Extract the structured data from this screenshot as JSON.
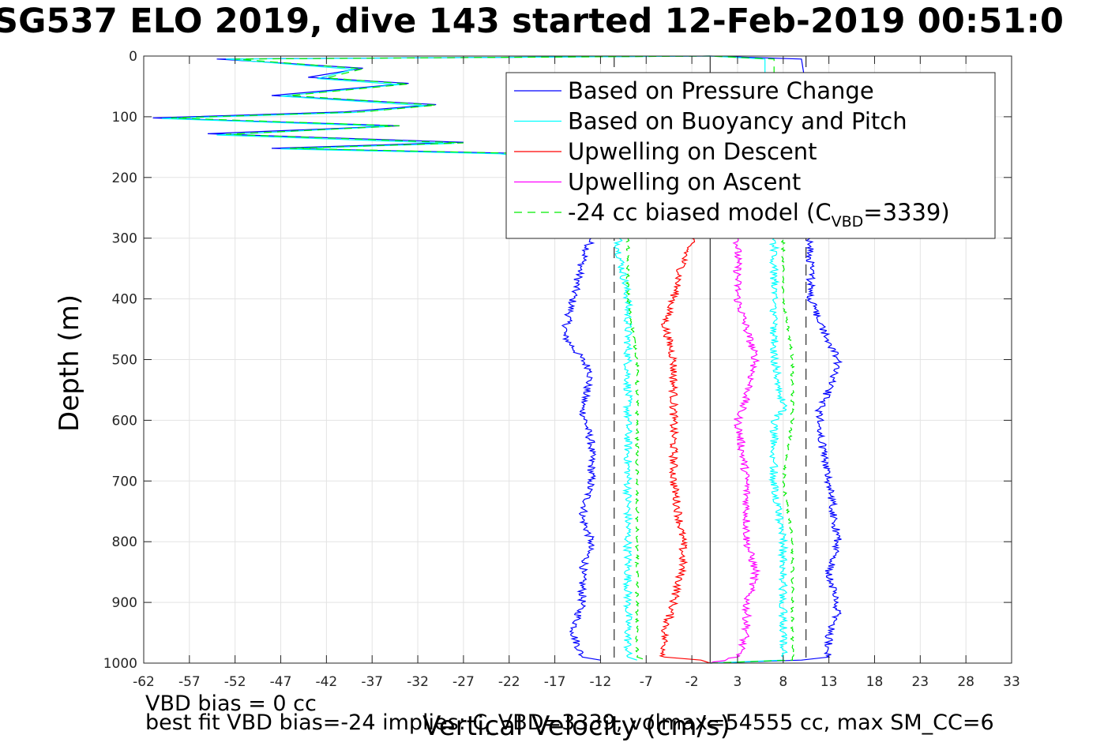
{
  "title": "SG537 ELO 2019, dive 143 started 12-Feb-2019 00:51:0",
  "footer": {
    "line1": "VBD bias = 0 cc",
    "line2": "best fit VBD bias=-24 implies: C_VBD=3339, volmax=54555 cc, max SM_CC=6"
  },
  "chart_data": {
    "type": "line",
    "xlabel": "Vertical Velocity (cm/s)",
    "ylabel": "Depth (m)",
    "xlim": [
      -62,
      33
    ],
    "ylim": [
      1000,
      0
    ],
    "xticks": [
      -62,
      -57,
      -52,
      -47,
      -42,
      -37,
      -32,
      -27,
      -22,
      -17,
      -12,
      -7,
      -2,
      3,
      8,
      13,
      18,
      23,
      28,
      33
    ],
    "yticks": [
      0,
      100,
      200,
      300,
      400,
      500,
      600,
      700,
      800,
      900,
      1000
    ],
    "grid": true,
    "legend_position": "top-right",
    "reference_lines": {
      "zero_solid_x": 0,
      "dashed_x": [
        -10.5,
        10.5
      ]
    },
    "series": [
      {
        "name": "Based on Pressure Change",
        "color": "#0000ff",
        "style": "solid",
        "descent": [
          [
            0,
            0
          ],
          [
            -54,
            5
          ],
          [
            -38,
            20
          ],
          [
            -44,
            35
          ],
          [
            -33,
            45
          ],
          [
            -48,
            65
          ],
          [
            -30,
            80
          ],
          [
            -40,
            92
          ],
          [
            -61,
            102
          ],
          [
            -34,
            115
          ],
          [
            -55,
            128
          ],
          [
            -27,
            142
          ],
          [
            -48,
            152
          ],
          [
            -22,
            160
          ],
          [
            -16,
            170
          ],
          [
            -12,
            180
          ],
          [
            -10,
            190
          ],
          [
            -13,
            300
          ],
          [
            -14,
            340
          ],
          [
            -15,
            400
          ],
          [
            -16,
            460
          ],
          [
            -13,
            520
          ],
          [
            -14,
            580
          ],
          [
            -13,
            640
          ],
          [
            -13,
            700
          ],
          [
            -14,
            760
          ],
          [
            -13,
            800
          ],
          [
            -14,
            850
          ],
          [
            -14,
            900
          ],
          [
            -15,
            950
          ],
          [
            -14,
            990
          ],
          [
            -12,
            995
          ]
        ],
        "ascent": [
          [
            0,
            1000
          ],
          [
            10,
            995
          ],
          [
            13,
            990
          ],
          [
            13,
            950
          ],
          [
            14,
            920
          ],
          [
            13,
            850
          ],
          [
            14,
            800
          ],
          [
            13,
            700
          ],
          [
            12,
            620
          ],
          [
            12,
            580
          ],
          [
            13,
            550
          ],
          [
            14,
            500
          ],
          [
            12,
            440
          ],
          [
            11,
            400
          ],
          [
            11,
            350
          ],
          [
            11,
            300
          ],
          [
            10,
            180
          ],
          [
            11,
            100
          ],
          [
            10,
            5
          ],
          [
            0,
            0
          ]
        ]
      },
      {
        "name": "Based on Buoyancy and Pitch",
        "color": "#00ffff",
        "style": "solid",
        "descent": [
          [
            0,
            0
          ],
          [
            -53,
            5
          ],
          [
            -39,
            22
          ],
          [
            -43,
            37
          ],
          [
            -34,
            47
          ],
          [
            -47,
            66
          ],
          [
            -31,
            82
          ],
          [
            -39,
            93
          ],
          [
            -60,
            103
          ],
          [
            -35,
            116
          ],
          [
            -54,
            130
          ],
          [
            -28,
            144
          ],
          [
            -47,
            153
          ],
          [
            -23,
            161
          ],
          [
            -17,
            171
          ],
          [
            -12,
            181
          ],
          [
            -10,
            190
          ],
          [
            -10,
            300
          ],
          [
            -10,
            320
          ],
          [
            -9,
            400
          ],
          [
            -9,
            500
          ],
          [
            -9,
            600
          ],
          [
            -9,
            700
          ],
          [
            -9,
            800
          ],
          [
            -9,
            900
          ],
          [
            -9,
            990
          ],
          [
            -8,
            995
          ]
        ],
        "ascent": [
          [
            0,
            1000
          ],
          [
            8,
            995
          ],
          [
            8,
            990
          ],
          [
            8,
            900
          ],
          [
            8,
            800
          ],
          [
            7,
            700
          ],
          [
            7,
            600
          ],
          [
            8,
            580
          ],
          [
            7,
            500
          ],
          [
            7,
            400
          ],
          [
            7,
            300
          ],
          [
            7,
            180
          ],
          [
            6,
            100
          ],
          [
            6,
            5
          ],
          [
            0,
            0
          ]
        ]
      },
      {
        "name": "Upwelling on Descent",
        "color": "#ff0000",
        "style": "solid",
        "points": [
          [
            -2,
            300
          ],
          [
            -3,
            340
          ],
          [
            -4,
            400
          ],
          [
            -5,
            440
          ],
          [
            -4,
            500
          ],
          [
            -4,
            560
          ],
          [
            -4,
            600
          ],
          [
            -4,
            700
          ],
          [
            -3,
            800
          ],
          [
            -3,
            840
          ],
          [
            -4,
            900
          ],
          [
            -5,
            950
          ],
          [
            -5,
            990
          ],
          [
            -1,
            995
          ],
          [
            0,
            1000
          ]
        ]
      },
      {
        "name": "Upwelling on Ascent",
        "color": "#ff00ff",
        "style": "solid",
        "points": [
          [
            3,
            300
          ],
          [
            3,
            340
          ],
          [
            3,
            400
          ],
          [
            4,
            450
          ],
          [
            5,
            500
          ],
          [
            4,
            560
          ],
          [
            3,
            600
          ],
          [
            4,
            700
          ],
          [
            4,
            800
          ],
          [
            5,
            850
          ],
          [
            4,
            900
          ],
          [
            4,
            950
          ],
          [
            3,
            990
          ],
          [
            0,
            1000
          ]
        ]
      },
      {
        "name": "-24 cc biased model (C",
        "name_sub": "VBD",
        "name_tail": "=3339)",
        "color": "#00ee00",
        "style": "dashed",
        "descent": [
          [
            0,
            0
          ],
          [
            -52,
            5
          ],
          [
            -38,
            21
          ],
          [
            -42,
            36
          ],
          [
            -33,
            46
          ],
          [
            -46,
            65
          ],
          [
            -30,
            81
          ],
          [
            -38,
            92
          ],
          [
            -59,
            102
          ],
          [
            -34,
            115
          ],
          [
            -53,
            129
          ],
          [
            -27,
            143
          ],
          [
            -46,
            152
          ],
          [
            -22,
            160
          ],
          [
            -16,
            170
          ],
          [
            -11,
            181
          ],
          [
            -9,
            190
          ],
          [
            -9,
            300
          ],
          [
            -9,
            400
          ],
          [
            -8,
            500
          ],
          [
            -8,
            600
          ],
          [
            -8,
            700
          ],
          [
            -8,
            800
          ],
          [
            -8,
            900
          ],
          [
            -8,
            990
          ],
          [
            -7,
            995
          ]
        ],
        "ascent": [
          [
            0,
            1000
          ],
          [
            9,
            995
          ],
          [
            9,
            990
          ],
          [
            9,
            900
          ],
          [
            9,
            800
          ],
          [
            8,
            700
          ],
          [
            9,
            600
          ],
          [
            9,
            500
          ],
          [
            8,
            400
          ],
          [
            8,
            300
          ],
          [
            8,
            180
          ],
          [
            7,
            100
          ],
          [
            7,
            5
          ],
          [
            0,
            0
          ]
        ]
      }
    ]
  }
}
